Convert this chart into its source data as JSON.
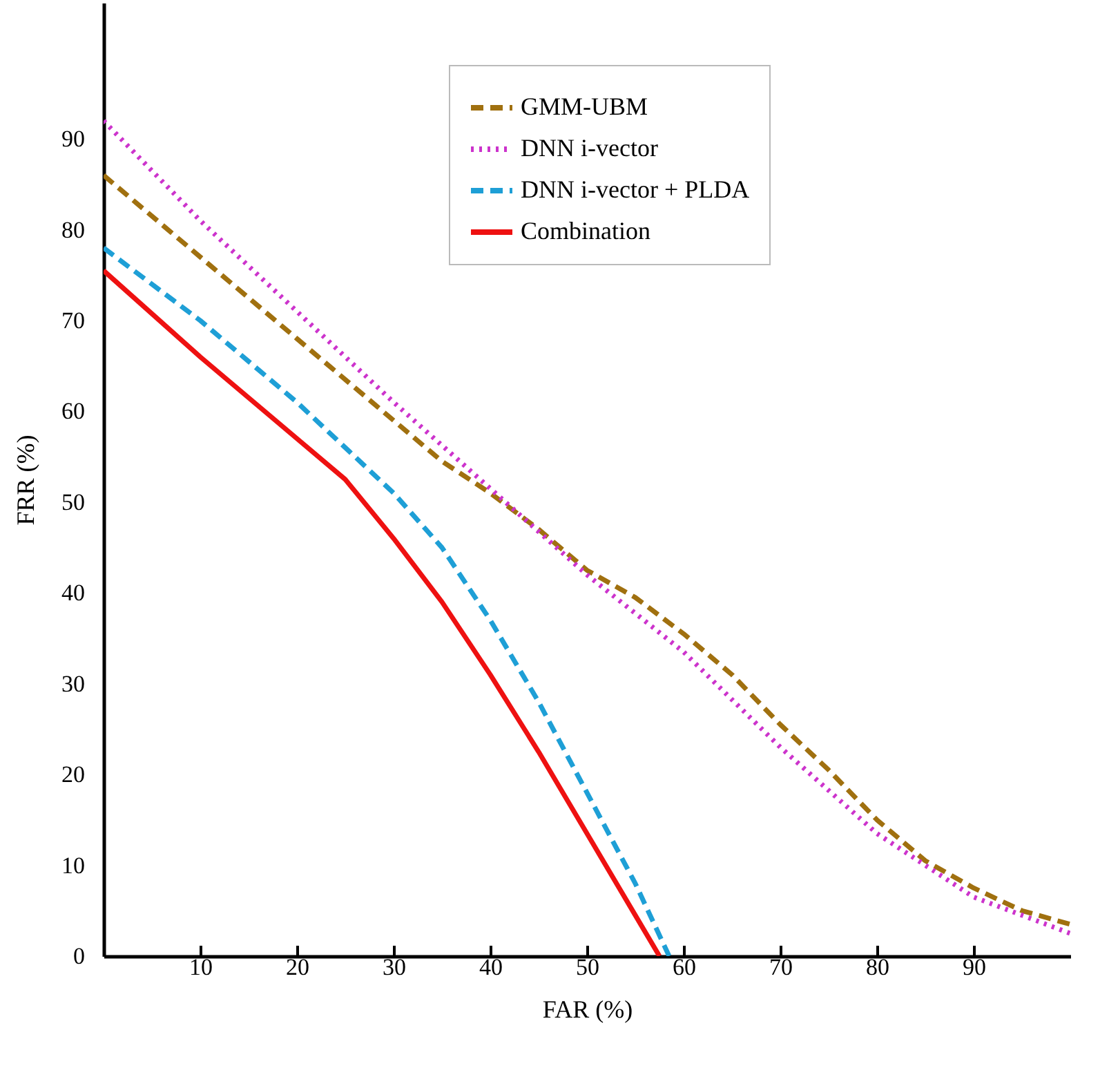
{
  "chart_data": {
    "type": "line",
    "xlabel": "FAR (%)",
    "ylabel": "FRR (%)",
    "xlim": [
      0,
      100
    ],
    "ylim": [
      0,
      105
    ],
    "xticks": [
      10,
      20,
      30,
      40,
      50,
      60,
      70,
      80,
      90
    ],
    "yticks": [
      0,
      10,
      20,
      30,
      40,
      50,
      60,
      70,
      80,
      90
    ],
    "grid": false,
    "legend": "top right",
    "marker": "none",
    "series": [
      {
        "name": "GMM-UBM",
        "color": "#a0700f",
        "line_style": "dashed",
        "x": [
          0,
          10,
          20,
          30,
          35,
          40,
          45,
          50,
          55,
          60,
          65,
          70,
          75,
          80,
          85,
          90,
          95,
          100
        ],
        "values": [
          86,
          77,
          68,
          59,
          54.5,
          51,
          47,
          42.5,
          39.5,
          35.5,
          31,
          25.5,
          20.5,
          15,
          10.5,
          7.5,
          5,
          3.5
        ]
      },
      {
        "name": "DNN i-vector",
        "color": "#cc33cc",
        "line_style": "dotted",
        "x": [
          0,
          10,
          20,
          30,
          40,
          50,
          60,
          70,
          80,
          90,
          100
        ],
        "values": [
          92,
          81,
          71,
          61,
          51.5,
          42,
          33.5,
          23,
          13.5,
          6.5,
          2.5
        ]
      },
      {
        "name": "DNN i-vector + PLDA",
        "color": "#1e9fd6",
        "line_style": "dashed",
        "x": [
          0,
          10,
          20,
          30,
          35,
          40,
          45,
          50,
          55,
          58.5
        ],
        "values": [
          78,
          70,
          61,
          51,
          45,
          37,
          28,
          18,
          8,
          0
        ]
      },
      {
        "name": "Combination",
        "color": "#ee1111",
        "line_style": "solid",
        "x": [
          0,
          10,
          20,
          25,
          30,
          35,
          40,
          45,
          50,
          55,
          57.5
        ],
        "values": [
          75.5,
          66,
          57,
          52.5,
          46,
          39,
          31,
          22.5,
          13.5,
          4.5,
          0
        ]
      }
    ]
  }
}
